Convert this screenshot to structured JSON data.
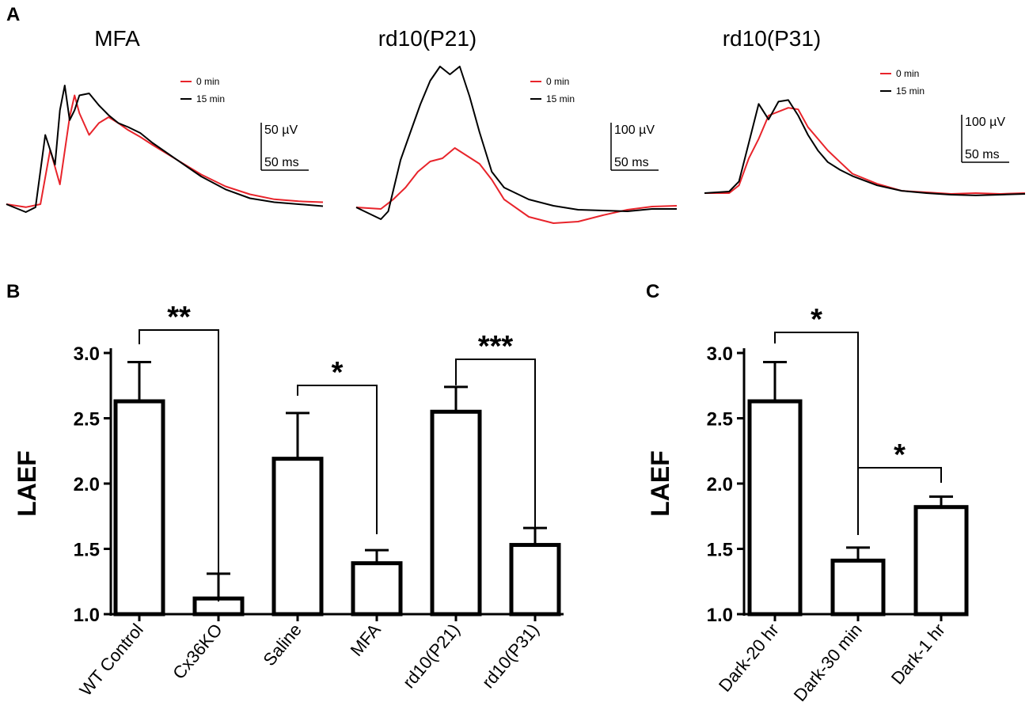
{
  "panel_labels": {
    "a": "A",
    "b": "B",
    "c": "C"
  },
  "colors": {
    "trace_0min": "#e8242b",
    "trace_15min": "#000000",
    "bars": "#000000"
  },
  "chart_data": [
    {
      "panel": "A",
      "type": "line",
      "subplots": [
        {
          "title": "MFA",
          "legend": [
            "0 min",
            "15 min"
          ],
          "scale_y": "50 µV",
          "scale_x": "50 ms",
          "series": [
            {
              "name": "0 min",
              "color": "#e8242b",
              "x": [
                0,
                8,
                14,
                18,
                22,
                26,
                28,
                30,
                34,
                38,
                42,
                46,
                50,
                55,
                60,
                70,
                80,
                90,
                100,
                110,
                120,
                130
              ],
              "y": [
                0,
                -3,
                0,
                55,
                20,
                88,
                110,
                92,
                70,
                82,
                88,
                82,
                75,
                68,
                60,
                45,
                30,
                18,
                10,
                5,
                3,
                2
              ]
            },
            {
              "name": "15 min",
              "color": "#000000",
              "x": [
                0,
                8,
                12,
                16,
                20,
                22,
                24,
                26,
                28,
                30,
                34,
                38,
                42,
                46,
                50,
                55,
                60,
                70,
                80,
                90,
                100,
                110,
                120,
                130
              ],
              "y": [
                0,
                -8,
                -3,
                70,
                40,
                95,
                120,
                85,
                95,
                110,
                112,
                100,
                90,
                82,
                78,
                72,
                62,
                45,
                28,
                15,
                6,
                2,
                0,
                -2
              ]
            }
          ]
        },
        {
          "title": "rd10(P21)",
          "legend": [
            "0 min",
            "15 min"
          ],
          "scale_y": "100 µV",
          "scale_x": "50 ms",
          "series": [
            {
              "name": "0 min",
              "color": "#e8242b",
              "x": [
                0,
                10,
                15,
                20,
                25,
                30,
                35,
                40,
                45,
                50,
                55,
                60,
                70,
                80,
                90,
                100,
                110,
                120,
                130
              ],
              "y": [
                0,
                -2,
                10,
                25,
                45,
                58,
                62,
                75,
                65,
                55,
                35,
                10,
                -12,
                -20,
                -18,
                -10,
                -3,
                1,
                2
              ]
            },
            {
              "name": "15 min",
              "color": "#000000",
              "x": [
                0,
                10,
                13,
                18,
                22,
                26,
                30,
                34,
                38,
                42,
                46,
                50,
                55,
                60,
                70,
                80,
                90,
                100,
                110,
                120,
                130
              ],
              "y": [
                0,
                -15,
                -5,
                60,
                95,
                130,
                160,
                178,
                168,
                178,
                140,
                95,
                45,
                25,
                10,
                2,
                -3,
                -4,
                -5,
                -2,
                -2
              ]
            }
          ]
        },
        {
          "title": "rd10(P31)",
          "legend": [
            "0 min",
            "15 min"
          ],
          "scale_y": "100 µV",
          "scale_x": "50 ms",
          "series": [
            {
              "name": "0 min",
              "color": "#e8242b",
              "x": [
                0,
                10,
                14,
                18,
                22,
                26,
                30,
                34,
                38,
                42,
                46,
                50,
                55,
                60,
                70,
                80,
                90,
                100,
                110,
                120,
                130
              ],
              "y": [
                0,
                0,
                10,
                45,
                70,
                100,
                105,
                110,
                108,
                85,
                70,
                55,
                40,
                25,
                12,
                3,
                1,
                -1,
                0,
                -1,
                0
              ]
            },
            {
              "name": "15 min",
              "color": "#000000",
              "x": [
                0,
                10,
                14,
                18,
                22,
                26,
                30,
                34,
                38,
                42,
                46,
                50,
                55,
                60,
                70,
                80,
                90,
                100,
                110,
                120,
                130
              ],
              "y": [
                0,
                2,
                15,
                65,
                115,
                95,
                118,
                120,
                100,
                75,
                55,
                40,
                30,
                22,
                10,
                3,
                0,
                -2,
                -3,
                -2,
                -1
              ]
            }
          ]
        }
      ]
    },
    {
      "panel": "B",
      "type": "bar",
      "ylabel": "LAEF",
      "ylim": [
        1.0,
        3.0
      ],
      "yticks": [
        "1.0",
        "1.5",
        "2.0",
        "2.5",
        "3.0"
      ],
      "categories": [
        "WT Control",
        "Cx36KO",
        "Saline",
        "MFA",
        "rd10(P21)",
        "rd10(P31)"
      ],
      "values": [
        2.63,
        1.12,
        2.19,
        1.39,
        2.55,
        1.53
      ],
      "errors": [
        0.3,
        0.19,
        0.35,
        0.1,
        0.19,
        0.13
      ],
      "significance": [
        {
          "from": "WT Control",
          "to": "Cx36KO",
          "label": "**"
        },
        {
          "from": "Saline",
          "to": "MFA",
          "label": "*"
        },
        {
          "from": "rd10(P21)",
          "to": "rd10(P31)",
          "label": "***"
        }
      ]
    },
    {
      "panel": "C",
      "type": "bar",
      "ylabel": "LAEF",
      "ylim": [
        1.0,
        3.0
      ],
      "yticks": [
        "1.0",
        "1.5",
        "2.0",
        "2.5",
        "3.0"
      ],
      "categories": [
        "Dark-20 hr",
        "Dark-30 min",
        "Dark-1 hr"
      ],
      "values": [
        2.63,
        1.41,
        1.82
      ],
      "errors": [
        0.3,
        0.1,
        0.08
      ],
      "significance": [
        {
          "from": "Dark-20 hr",
          "to": "Dark-30 min",
          "label": "*"
        },
        {
          "from": "Dark-30 min",
          "to": "Dark-1 hr",
          "label": "*"
        }
      ]
    }
  ]
}
